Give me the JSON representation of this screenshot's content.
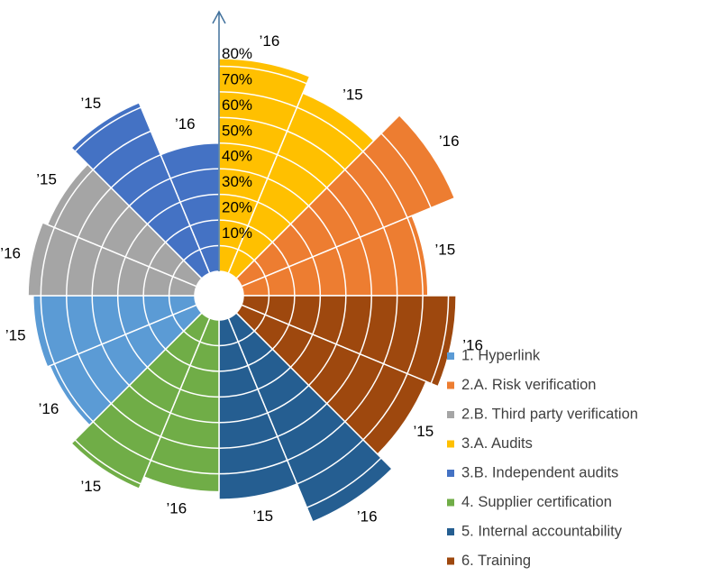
{
  "chart_data": {
    "type": "polar_bar",
    "rlim": [
      0,
      90
    ],
    "rticks": [
      {
        "value": 10,
        "label": "10%"
      },
      {
        "value": 20,
        "label": "20%"
      },
      {
        "value": 30,
        "label": "30%"
      },
      {
        "value": 40,
        "label": "40%"
      },
      {
        "value": 50,
        "label": "50%"
      },
      {
        "value": 60,
        "label": "60%"
      },
      {
        "value": 70,
        "label": "70%"
      },
      {
        "value": 80,
        "label": "80%"
      }
    ],
    "series": [
      {
        "name": "3.A. Audits",
        "color": "#ffc000",
        "categories": [
          "’16",
          "’15"
        ],
        "values": [
          83,
          76
        ]
      },
      {
        "name": "2.A. Risk verification",
        "color": "#ed7d31",
        "categories": [
          "’16",
          "’15"
        ],
        "values": [
          90,
          72
        ]
      },
      {
        "name": "6. Training",
        "color": "#9e480e",
        "categories": [
          "’16",
          "’15"
        ],
        "values": [
          83,
          78
        ]
      },
      {
        "name": "5. Internal accountability",
        "color": "#255e91",
        "categories": [
          "’16",
          "’15"
        ],
        "values": [
          86,
          70
        ]
      },
      {
        "name": "4. Supplier certification",
        "color": "#70ad47",
        "categories": [
          "’16",
          "’15"
        ],
        "values": [
          67,
          72
        ]
      },
      {
        "name": "1. Hyperlink",
        "color": "#5b9bd5",
        "categories": [
          "’16",
          "’15"
        ],
        "values": [
          62,
          63
        ]
      },
      {
        "name": "2.B. Third party verification",
        "color": "#a5a5a5",
        "categories": [
          "’16",
          "’15"
        ],
        "values": [
          65,
          63
        ]
      },
      {
        "name": "3.B. Independent audits",
        "color": "#4472c4",
        "categories": [
          "’15",
          "’16"
        ],
        "values": [
          72,
          50
        ]
      }
    ]
  }
}
